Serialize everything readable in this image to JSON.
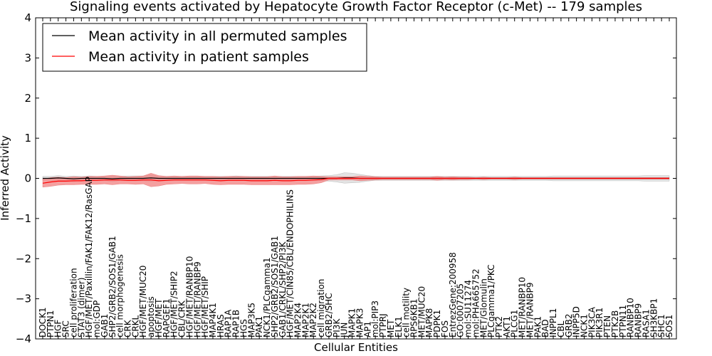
{
  "chart_data": {
    "type": "line",
    "title": "Signaling events activated by Hepatocyte Growth Factor Receptor (c-Met) -- 179 samples",
    "xlabel": "Cellular Entities",
    "ylabel": "Inferred Activity",
    "ylim": [
      -4,
      4
    ],
    "yticks": [
      -4,
      -3,
      -2,
      -1,
      0,
      1,
      2,
      3,
      4
    ],
    "legend_position": "top-left",
    "colors": {
      "permuted": "#000000",
      "patient": "#ff0000",
      "patient_band": "#f08080",
      "permuted_band": "#cccccc"
    },
    "categories": [
      "DOCK1",
      "PTPN1",
      "HGF",
      "SRC",
      "cell proliferation",
      "STAT3 (dimer)",
      "HGF/MET/Paxillin/FAK1/FAK12/RasGAP",
      "mol:GDP",
      "GAB1",
      "SHP2/GRB2/SOS1/GAB1",
      "cell morphogenesis",
      "CRK",
      "CRKL",
      "HGF/MET/MUC20",
      "apoptosis",
      "HGF/MET",
      "RAPGEF1",
      "HGF/MET/SHIP2",
      "CBL/CRK",
      "HGF/MET/RANBP10",
      "HGF/MET/RANBP9",
      "HGF/MET/SHIP",
      "MAP4K1",
      "HRAS",
      "RAP1A",
      "RAP1B",
      "HGS",
      "MAP3K5",
      "PAK1",
      "NCK1/PLCgamma1",
      "SHP2/GRB2/SOS1/GAB1",
      "GAB1/CRKL/SHP2/PI3K",
      "HGF/MET/CIN85/CBL/ENDOPHILINS",
      "MAP2K4",
      "MAP2K1",
      "MAP2K2",
      "cell migration",
      "GRB2/SHC",
      "PI3K",
      "JUN",
      "MAPK1",
      "MAPK3",
      "AP1",
      "mol:PIP3",
      "PTPRJ",
      "MET",
      "ELK1",
      "cell motility",
      "RPS6KB1",
      "MET/MUC20",
      "MAPK8",
      "PDPK1",
      "FOS",
      "EntrezGene:200958",
      "GO:0007205",
      "mol:SU11274",
      "mol:PHA665752",
      "MET/Glomulin",
      "PLCgamma1/PKC",
      "PTK2",
      "AKT1",
      "PLCG1",
      "MET/RANBP10",
      "MET/RANBP9",
      "PAK1",
      "BAD",
      "INPPL1",
      "CBL",
      "GRB2",
      "INPP5D",
      "NCK1",
      "PIK3CA",
      "PIK3R1",
      "PTEN",
      "PTK2B",
      "PTPN11",
      "RANBP10",
      "RANBP9",
      "RASA1",
      "SH3KBP1",
      "SHC1",
      "SOS1"
    ],
    "series": [
      {
        "name": "Mean activity in all permuted samples",
        "values": [
          0.0,
          0.0,
          0.01,
          0.0,
          -0.01,
          0.0,
          0.0,
          0.0,
          0.0,
          -0.01,
          0.0,
          0.0,
          0.0,
          0.0,
          0.01,
          0.0,
          0.0,
          0.0,
          0.0,
          0.0,
          0.0,
          0.0,
          0.0,
          0.0,
          0.0,
          0.0,
          0.0,
          0.0,
          0.0,
          0.0,
          0.0,
          0.0,
          0.0,
          0.0,
          0.0,
          0.0,
          0.0,
          0.0,
          0.0,
          0.01,
          0.01,
          0.0,
          0.0,
          0.0,
          0.0,
          0.0,
          0.0,
          0.0,
          0.0,
          0.0,
          0.0,
          0.0,
          0.0,
          0.0,
          0.0,
          0.0,
          0.0,
          0.0,
          0.0,
          0.0,
          0.0,
          0.0,
          0.0,
          0.0,
          0.0,
          0.0,
          0.0,
          0.0,
          0.0,
          0.0,
          0.0,
          0.0,
          0.0,
          0.0,
          0.0,
          0.0,
          0.0,
          0.0,
          0.0,
          0.0,
          0.0,
          0.0
        ],
        "band": [
          0.05,
          0.05,
          0.06,
          0.05,
          0.07,
          0.05,
          0.06,
          0.05,
          0.05,
          0.07,
          0.05,
          0.06,
          0.06,
          0.06,
          0.08,
          0.05,
          0.05,
          0.05,
          0.05,
          0.05,
          0.05,
          0.05,
          0.05,
          0.05,
          0.05,
          0.06,
          0.05,
          0.05,
          0.05,
          0.05,
          0.05,
          0.05,
          0.05,
          0.05,
          0.05,
          0.05,
          0.06,
          0.07,
          0.09,
          0.13,
          0.12,
          0.1,
          0.07,
          0.05,
          0.05,
          0.05,
          0.05,
          0.05,
          0.05,
          0.05,
          0.05,
          0.05,
          0.05,
          0.05,
          0.05,
          0.05,
          0.05,
          0.05,
          0.05,
          0.05,
          0.05,
          0.05,
          0.05,
          0.05,
          0.05,
          0.05,
          0.06,
          0.06,
          0.06,
          0.06,
          0.06,
          0.06,
          0.06,
          0.06,
          0.06,
          0.06,
          0.06,
          0.06,
          0.07,
          0.07,
          0.07,
          0.07
        ]
      },
      {
        "name": "Mean activity in patient samples",
        "values": [
          -0.12,
          -0.09,
          -0.07,
          -0.07,
          -0.06,
          -0.06,
          -0.05,
          -0.05,
          -0.04,
          -0.04,
          -0.04,
          -0.05,
          -0.05,
          -0.04,
          -0.04,
          -0.06,
          -0.05,
          -0.04,
          -0.04,
          -0.04,
          -0.04,
          -0.04,
          -0.05,
          -0.06,
          -0.05,
          -0.05,
          -0.05,
          -0.06,
          -0.06,
          -0.06,
          -0.05,
          -0.06,
          -0.06,
          -0.05,
          -0.05,
          -0.04,
          -0.03,
          0.0,
          0.0,
          0.0,
          0.0,
          0.0,
          0.0,
          0.0,
          0.0,
          0.0,
          0.0,
          0.0,
          0.0,
          0.0,
          0.0,
          0.0,
          0.0,
          0.0,
          0.0,
          0.0,
          0.0,
          0.0,
          0.0,
          0.0,
          0.0,
          0.0,
          0.0,
          0.0,
          0.0,
          0.0,
          0.0,
          0.0,
          0.0,
          0.0,
          0.0,
          0.0,
          0.0,
          0.0,
          0.0,
          0.0,
          0.0,
          0.0,
          0.0,
          0.0,
          0.0,
          0.0
        ],
        "band": [
          0.1,
          0.11,
          0.1,
          0.09,
          0.1,
          0.09,
          0.1,
          0.1,
          0.1,
          0.12,
          0.1,
          0.09,
          0.1,
          0.1,
          0.17,
          0.13,
          0.1,
          0.1,
          0.09,
          0.1,
          0.1,
          0.09,
          0.1,
          0.1,
          0.1,
          0.1,
          0.1,
          0.1,
          0.1,
          0.1,
          0.11,
          0.1,
          0.1,
          0.1,
          0.1,
          0.1,
          0.08,
          0.04,
          0.04,
          0.04,
          0.04,
          0.06,
          0.05,
          0.04,
          0.03,
          0.03,
          0.03,
          0.03,
          0.03,
          0.03,
          0.03,
          0.05,
          0.03,
          0.04,
          0.03,
          0.03,
          0.02,
          0.03,
          0.02,
          0.02,
          0.02,
          0.03,
          0.02,
          0.02,
          0.02,
          0.02,
          0.02,
          0.02,
          0.02,
          0.02,
          0.02,
          0.02,
          0.02,
          0.02,
          0.02,
          0.02,
          0.02,
          0.02,
          0.02,
          0.02,
          0.02,
          0.02
        ]
      }
    ]
  }
}
